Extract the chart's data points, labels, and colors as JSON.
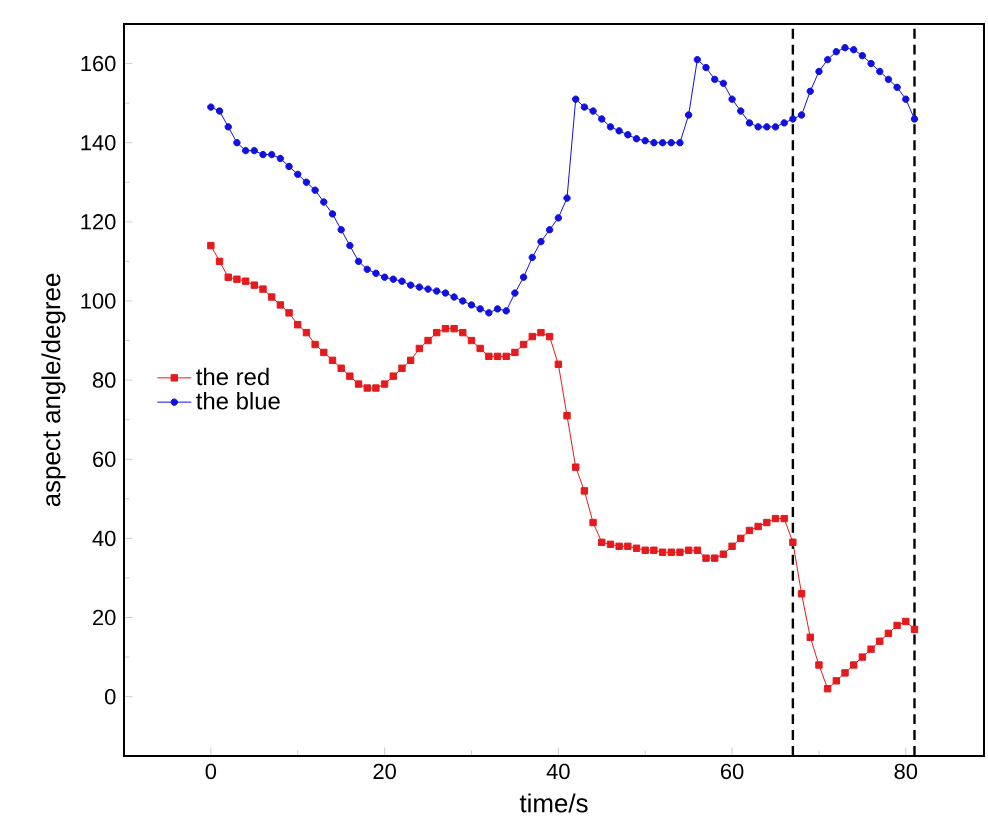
{
  "chart_data": {
    "type": "line",
    "xlabel": "time/s",
    "ylabel": "aspect angle/degree",
    "xlim": [
      -10,
      89
    ],
    "ylim": [
      -15,
      170
    ],
    "xticks": [
      0,
      20,
      40,
      60,
      80
    ],
    "yticks": [
      0,
      20,
      40,
      60,
      80,
      100,
      120,
      140,
      160
    ],
    "grid": false,
    "legend": "left",
    "x": [
      0,
      1,
      2,
      3,
      4,
      5,
      6,
      7,
      8,
      9,
      10,
      11,
      12,
      13,
      14,
      15,
      16,
      17,
      18,
      19,
      20,
      21,
      22,
      23,
      24,
      25,
      26,
      27,
      28,
      29,
      30,
      31,
      32,
      33,
      34,
      35,
      36,
      37,
      38,
      39,
      40,
      41,
      42,
      43,
      44,
      45,
      46,
      47,
      48,
      49,
      50,
      51,
      52,
      53,
      54,
      55,
      56,
      57,
      58,
      59,
      60,
      61,
      62,
      63,
      64,
      65,
      66,
      67,
      68,
      69,
      70,
      71,
      72,
      73,
      74,
      75,
      76,
      77,
      78,
      79,
      80,
      81
    ],
    "series": [
      {
        "name": "the red",
        "color": "#e41a1c",
        "marker": "square",
        "values": [
          114,
          110,
          106,
          105.5,
          105,
          104,
          103,
          101,
          99,
          97,
          94,
          92,
          89,
          87,
          85,
          83,
          81,
          79,
          78,
          78,
          79,
          81,
          83,
          85,
          88,
          90,
          92,
          93,
          93,
          92,
          90,
          88,
          86,
          86,
          86,
          87,
          89,
          91,
          92,
          91,
          84,
          71,
          58,
          52,
          44,
          39,
          38.5,
          38,
          38,
          37.5,
          37,
          37,
          36.5,
          36.5,
          36.5,
          37,
          37,
          35,
          35,
          36,
          38,
          40,
          42,
          43,
          44,
          45,
          45,
          39,
          26,
          15,
          8,
          2,
          4,
          6,
          8,
          10,
          12,
          14,
          16,
          18,
          19,
          17
        ]
      },
      {
        "name": "the blue",
        "color": "#1010e0",
        "marker": "circle",
        "values": [
          149,
          148,
          144,
          140,
          138,
          138,
          137,
          137,
          136,
          134,
          132,
          130,
          128,
          125,
          122,
          118,
          114,
          110,
          108,
          107,
          106,
          105.5,
          105,
          104,
          103.5,
          103,
          102.5,
          102,
          101,
          100,
          99,
          98,
          97,
          98,
          97.5,
          102,
          106,
          111,
          115,
          118,
          121,
          126,
          151,
          149,
          148,
          146,
          144,
          143,
          142,
          141,
          140.5,
          140,
          140,
          140,
          140,
          147,
          161,
          159,
          156,
          155,
          151,
          148,
          145,
          144,
          144,
          144,
          145,
          146,
          147,
          153,
          158,
          161,
          163,
          164,
          163.5,
          162,
          160,
          158,
          156,
          154,
          151,
          146
        ]
      }
    ],
    "ref_lines": [
      {
        "axis": "x",
        "value": 67,
        "color": "#000000",
        "line_style": "dashed"
      },
      {
        "axis": "x",
        "value": 81,
        "color": "#000000",
        "line_style": "dashed"
      }
    ]
  }
}
